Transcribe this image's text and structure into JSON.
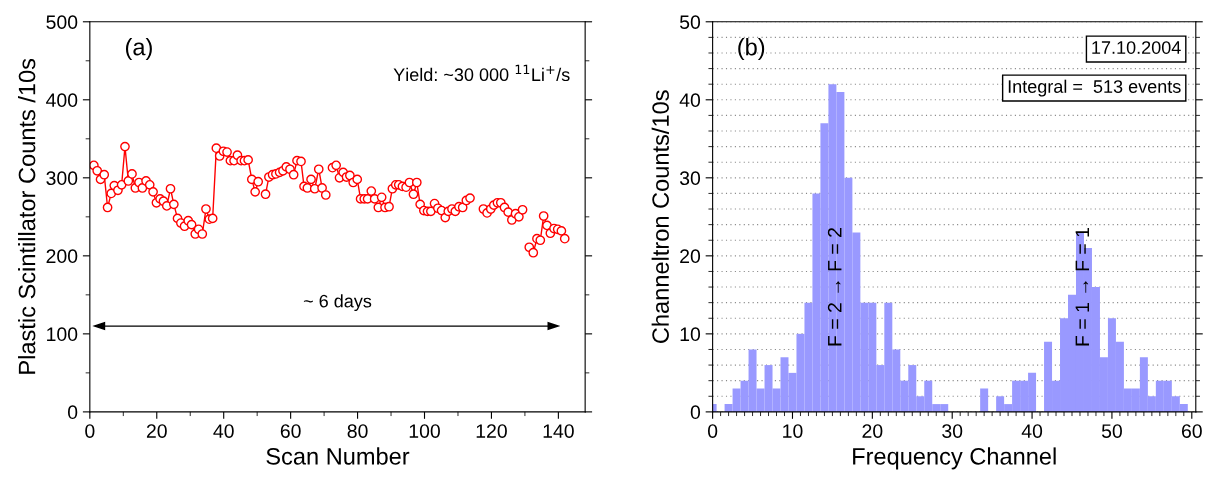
{
  "chart_data": [
    {
      "type": "line",
      "xlabel": "Scan Number",
      "ylabel": "Plastic Scintillator Counts /10s",
      "xlim": [
        0,
        148
      ],
      "ylim": [
        0,
        500
      ],
      "xticks": [
        0,
        {
          "value": 10,
          "label": null
        },
        20,
        {
          "value": 30,
          "label": null
        },
        40,
        {
          "value": 50,
          "label": null
        },
        60,
        {
          "value": 70,
          "label": null
        },
        80,
        {
          "value": 90,
          "label": null
        },
        100,
        {
          "value": 110,
          "label": null
        },
        120,
        {
          "value": 130,
          "label": null
        },
        140
      ],
      "yticks": [
        0,
        {
          "value": 50,
          "label": null
        },
        100,
        {
          "value": 150,
          "label": null
        },
        200,
        {
          "value": 250,
          "label": null
        },
        300,
        {
          "value": 350,
          "label": null
        },
        400,
        {
          "value": 450,
          "label": null
        },
        500
      ],
      "marker": "circle",
      "line_style": "solid",
      "grid": false,
      "annotations": [
        "(a)",
        "Yield: ~30 000 $^{11}$Li$^{+}$/s",
        "~ 6 days"
      ],
      "series": [
        {
          "color": "#ff0000",
          "x": [
            1.2,
            2.2,
            3.2,
            4.3,
            5.3,
            6.4,
            7.3,
            8.4,
            9.5,
            10.5,
            11.5,
            12.6,
            13.6,
            14.7,
            15.7,
            16.8,
            17.9,
            18.9,
            19.9,
            21.0,
            22.0,
            23.0,
            24.1,
            25.1,
            26.2,
            27.2,
            28.3,
            29.4,
            30.4,
            31.5,
            32.5,
            33.6,
            34.7,
            35.7,
            36.7,
            37.8,
            38.8,
            39.9,
            41.0,
            42.0,
            43.1,
            44.1,
            45.2,
            46.2,
            47.3,
            48.4,
            49.4,
            50.3,
            51.4,
            52.5,
            53.5,
            54.6,
            55.6,
            56.7,
            57.7,
            58.7,
            59.8,
            60.9,
            61.9,
            63.1,
            64.0,
            65.0,
            66.1,
            67.2,
            68.4,
            69.4,
            70.5,
            71.5,
            72.5,
            73.6,
            74.6,
            75.7,
            76.7,
            77.7,
            78.7,
            79.9,
            80.9,
            82.0,
            83.0,
            84.1,
            85.1,
            86.2,
            87.2,
            88.2,
            89.4,
            90.4,
            91.4,
            92.3,
            93.4,
            94.5,
            95.5,
            96.7,
            97.7,
            98.7,
            99.8,
            100.9,
            101.9,
            103.0,
            104.0,
            105.1,
            106.2,
            107.1,
            108.2,
            109.2,
            110.3,
            111.4,
            112.5,
            113.6,
            115.6,
            117.6,
            118.7,
            119.8,
            120.7,
            121.8,
            122.8,
            123.9,
            125.0,
            126.1,
            127.2,
            128.2,
            129.3,
            130.3,
            131.3,
            132.5,
            133.6,
            134.6,
            135.6,
            136.6,
            137.6,
            138.7,
            139.8,
            140.9,
            141.9
          ],
          "values": [
            316,
            309,
            298,
            304,
            262,
            280,
            290,
            284,
            291,
            340,
            296,
            305,
            287,
            294,
            287,
            296,
            291,
            282,
            268,
            273,
            270,
            264,
            286,
            266,
            248,
            242,
            238,
            245,
            240,
            228,
            234,
            228,
            260,
            247,
            248,
            338,
            328,
            334,
            333,
            322,
            322,
            329,
            322,
            322,
            323,
            298,
            282,
            295,
            null,
            279,
            301,
            304,
            305,
            307,
            309,
            314,
            311,
            304,
            322,
            321,
            289,
            287,
            298,
            286,
            311,
            287,
            278,
            null,
            313,
            316,
            300,
            307,
            301,
            303,
            294,
            298,
            273,
            273,
            273,
            283,
            273,
            262,
            275,
            262,
            263,
            286,
            291,
            291,
            289,
            288,
            294,
            279,
            294,
            266,
            258,
            257,
            257,
            267,
            261,
            258,
            249,
            257,
            260,
            257,
            263,
            262,
            271,
            274,
            null,
            260,
            255,
            260,
            265,
            268,
            268,
            262,
            256,
            246,
            254,
            250,
            259,
            null,
            211,
            204,
            222,
            220,
            251,
            239,
            229,
            235,
            234,
            232,
            222
          ]
        }
      ]
    },
    {
      "type": "histogram",
      "xlabel": "Frequency Channel",
      "ylabel": "Channeltron Counts/10s",
      "xlim": [
        0,
        60.5
      ],
      "ylim": [
        0,
        50
      ],
      "xticks": [
        0,
        {
          "value": 1,
          "label": null
        },
        {
          "value": 2,
          "label": null
        },
        {
          "value": 3,
          "label": null
        },
        {
          "value": 4,
          "label": null
        },
        {
          "value": 5,
          "label": null
        },
        {
          "value": 6,
          "label": null
        },
        {
          "value": 7,
          "label": null
        },
        {
          "value": 8,
          "label": null
        },
        {
          "value": 9,
          "label": null
        },
        10,
        {
          "value": 11,
          "label": null
        },
        {
          "value": 12,
          "label": null
        },
        {
          "value": 13,
          "label": null
        },
        {
          "value": 14,
          "label": null
        },
        {
          "value": 15,
          "label": null
        },
        {
          "value": 16,
          "label": null
        },
        {
          "value": 17,
          "label": null
        },
        {
          "value": 18,
          "label": null
        },
        {
          "value": 19,
          "label": null
        },
        20,
        {
          "value": 21,
          "label": null
        },
        {
          "value": 22,
          "label": null
        },
        {
          "value": 23,
          "label": null
        },
        {
          "value": 24,
          "label": null
        },
        {
          "value": 25,
          "label": null
        },
        {
          "value": 26,
          "label": null
        },
        {
          "value": 27,
          "label": null
        },
        {
          "value": 28,
          "label": null
        },
        {
          "value": 29,
          "label": null
        },
        30,
        {
          "value": 31,
          "label": null
        },
        {
          "value": 32,
          "label": null
        },
        {
          "value": 33,
          "label": null
        },
        {
          "value": 34,
          "label": null
        },
        {
          "value": 35,
          "label": null
        },
        {
          "value": 36,
          "label": null
        },
        {
          "value": 37,
          "label": null
        },
        {
          "value": 38,
          "label": null
        },
        {
          "value": 39,
          "label": null
        },
        40,
        {
          "value": 41,
          "label": null
        },
        {
          "value": 42,
          "label": null
        },
        {
          "value": 43,
          "label": null
        },
        {
          "value": 44,
          "label": null
        },
        {
          "value": 45,
          "label": null
        },
        {
          "value": 46,
          "label": null
        },
        {
          "value": 47,
          "label": null
        },
        {
          "value": 48,
          "label": null
        },
        {
          "value": 49,
          "label": null
        },
        50,
        {
          "value": 51,
          "label": null
        },
        {
          "value": 52,
          "label": null
        },
        {
          "value": 53,
          "label": null
        },
        {
          "value": 54,
          "label": null
        },
        {
          "value": 55,
          "label": null
        },
        {
          "value": 56,
          "label": null
        },
        {
          "value": 57,
          "label": null
        },
        {
          "value": 58,
          "label": null
        },
        {
          "value": 59,
          "label": null
        },
        60
      ],
      "yticks": [
        0,
        {
          "value": 2,
          "label": null
        },
        {
          "value": 4,
          "label": null
        },
        {
          "value": 6,
          "label": null
        },
        {
          "value": 8,
          "label": null
        },
        10,
        {
          "value": 12,
          "label": null
        },
        {
          "value": 14,
          "label": null
        },
        {
          "value": 16,
          "label": null
        },
        {
          "value": 18,
          "label": null
        },
        20,
        {
          "value": 22,
          "label": null
        },
        {
          "value": 24,
          "label": null
        },
        {
          "value": 26,
          "label": null
        },
        {
          "value": 28,
          "label": null
        },
        30,
        {
          "value": 32,
          "label": null
        },
        {
          "value": 34,
          "label": null
        },
        {
          "value": 36,
          "label": null
        },
        {
          "value": 38,
          "label": null
        },
        40,
        {
          "value": 42,
          "label": null
        },
        {
          "value": 44,
          "label": null
        },
        {
          "value": 46,
          "label": null
        },
        {
          "value": 48,
          "label": null
        },
        50
      ],
      "grid": "y",
      "color": "#9999ff",
      "annotations": [
        "(b)",
        "17.10.2004",
        "Integral =  513 events",
        {
          "text": "F = 2 → F = 2",
          "x": 15.5,
          "y": 16
        },
        {
          "text": "F = 1 → F = 1",
          "x": 46.5,
          "y": 16
        }
      ],
      "bins": [
        0,
        0.5,
        1.5,
        2.5,
        3.5,
        4.5,
        5.5,
        6.5,
        7.5,
        8.5,
        9.5,
        10.5,
        11.5,
        12.5,
        13.5,
        14.5,
        15.5,
        16.5,
        17.5,
        18.5,
        19.5,
        20.5,
        21.5,
        22.5,
        23.5,
        24.5,
        25.5,
        26.5,
        27.5,
        28.5,
        29.5,
        33.5,
        34.5,
        35.5,
        36.5,
        37.5,
        38.5,
        39.5,
        40.5,
        41.5,
        42.5,
        43.5,
        44.5,
        45.5,
        46.5,
        47.5,
        48.5,
        49.5,
        50.5,
        51.5,
        52.5,
        53.5,
        54.5,
        55.5,
        56.5,
        57.5,
        58.5,
        59.5
      ],
      "values": [
        1,
        0,
        1,
        3,
        4,
        8,
        3,
        6,
        3,
        7,
        5,
        10,
        14,
        28,
        37,
        42,
        41,
        30,
        23,
        14,
        14,
        6,
        14,
        8,
        4,
        6,
        2,
        4,
        1,
        1,
        0,
        3,
        0,
        2,
        1,
        4,
        4,
        5,
        0,
        9,
        4,
        12,
        15,
        23,
        21,
        16,
        7,
        12,
        9,
        3,
        3,
        7,
        2,
        4,
        4,
        2,
        1
      ]
    }
  ]
}
